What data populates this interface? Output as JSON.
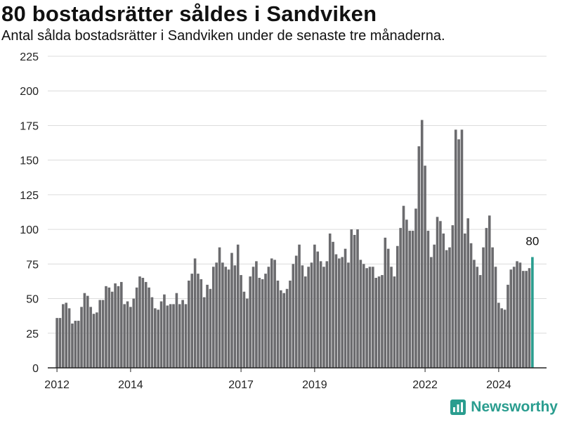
{
  "title": "80 bostadsrätter såldes i Sandviken",
  "subtitle": "Antal sålda bostadsrätter i Sandviken under de senaste tre månaderna.",
  "brand": {
    "name": "Newsworthy",
    "icon": "newsworthy-logo-icon",
    "color": "#2a9d8f"
  },
  "chart_data": {
    "type": "bar",
    "title": "80 bostadsrätter såldes i Sandviken",
    "subtitle": "Antal sålda bostadsrätter i Sandviken under de senaste tre månaderna.",
    "ylim": [
      0,
      225
    ],
    "yticks": [
      0,
      25,
      50,
      75,
      100,
      125,
      150,
      175,
      200,
      225
    ],
    "xlim": [
      2011.75,
      2025.3
    ],
    "xticks": [
      2012,
      2014,
      2017,
      2019,
      2022,
      2024
    ],
    "grid": true,
    "bar_color": "#6b6b6e",
    "highlight_color": "#2a9d8f",
    "annotation": {
      "text": "80"
    },
    "series": [
      {
        "start": 2012.0,
        "step": 0.08333,
        "values": [
          36,
          36,
          46,
          47,
          43,
          32,
          34,
          34,
          44,
          54,
          52,
          44,
          39,
          40,
          49,
          49,
          59,
          58,
          55,
          61,
          59,
          62,
          46,
          48,
          44,
          50,
          58,
          66,
          65,
          62,
          58,
          51,
          43,
          42,
          48,
          53,
          45,
          46,
          46,
          54,
          46,
          49,
          46,
          63,
          68,
          79,
          68,
          64,
          51,
          60,
          57,
          73,
          76,
          87,
          76,
          73,
          71,
          83,
          74,
          89,
          67,
          55,
          50,
          66,
          73,
          77,
          65,
          64,
          68,
          73,
          79,
          78,
          63,
          56,
          54,
          57,
          63,
          75,
          81,
          89,
          74,
          66,
          73,
          76,
          89,
          84,
          77,
          73,
          77,
          97,
          91,
          82,
          79,
          80,
          86,
          76,
          100,
          96,
          100,
          78,
          75,
          72,
          73,
          73,
          65,
          66,
          67,
          94,
          86,
          73,
          66,
          88,
          101,
          117,
          107,
          99,
          99,
          115,
          160,
          179,
          146,
          99,
          80,
          89,
          109,
          106,
          97,
          85,
          87,
          103,
          172,
          165,
          172,
          97,
          108,
          90,
          78,
          73,
          67,
          87,
          101,
          110,
          87,
          73,
          47,
          43,
          42,
          60,
          71,
          73,
          77,
          76,
          70,
          70,
          72,
          80
        ]
      }
    ]
  }
}
